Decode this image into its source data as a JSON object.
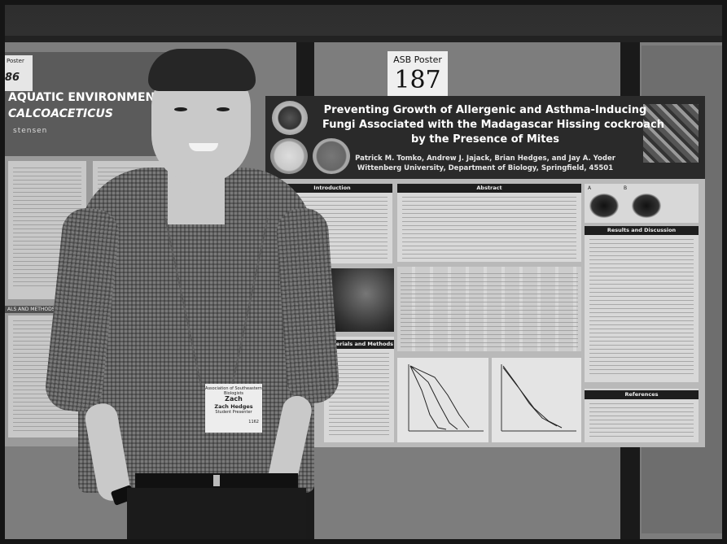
{
  "left_poster": {
    "number": "86",
    "corner_note": "Poster",
    "title_line1": "AQUATIC ENVIRONMENT USING",
    "title_line2": "CALCOACETICUS",
    "author_fragment": "stensen",
    "section_label": "ALS AND METHODS"
  },
  "asb_card": {
    "line1": "ASB Poster",
    "line2": "187"
  },
  "poster": {
    "title_line1": "Preventing Growth of Allergenic and Asthma-Inducing",
    "title_line2": "Fungi Associated with the Madagascar Hissing cockroach",
    "title_line3": "by the Presence of Mites",
    "authors": "Patrick M. Tomko, Andrew J. Jajack, Brian Hedges, and Jay A. Yoder",
    "affiliation": "Wittenberg University, Department of Biology, Springfield, 45501",
    "sections": {
      "introduction": "Introduction",
      "abstract": "Abstract",
      "methods": "Materials and Methods",
      "results": "Results and Discussion",
      "references": "References"
    },
    "figure_labels": [
      "A",
      "B"
    ]
  },
  "name_badge": {
    "header": "Association of Southeastern Biologists",
    "first_name": "Zach",
    "full_name": "Zach Hedges",
    "affiliation": "Student Presenter",
    "code": "1162"
  }
}
